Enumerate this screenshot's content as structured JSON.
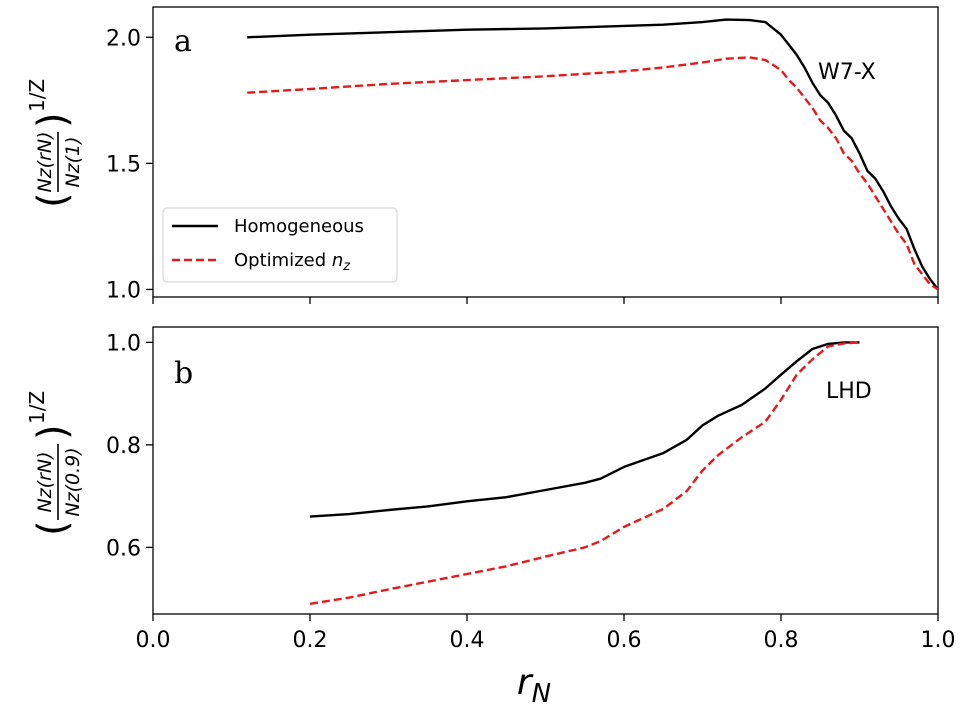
{
  "figure": {
    "xlabel": "r_N",
    "xlabel_main": "r",
    "xlabel_sub": "N"
  },
  "chart_data": [
    {
      "type": "line",
      "panel_label": "a",
      "annotation": "W7-X",
      "ylabel": {
        "numerator": "N_z(r_N)",
        "denominator": "N_z(1)",
        "exponent": "1/Z"
      },
      "xlim": [
        0.0,
        1.0
      ],
      "ylim": [
        0.97,
        2.12
      ],
      "xticks": [
        0.0,
        0.2,
        0.4,
        0.6,
        0.8,
        1.0
      ],
      "yticks": [
        1.0,
        1.5,
        2.0
      ],
      "ytick_labels": [
        "1.0",
        "1.5",
        "2.0"
      ],
      "xtick_labels_shown": false,
      "grid": false,
      "legend_position": "lower-left",
      "series": [
        {
          "name": "Homogeneous",
          "color": "#000000",
          "dash": "solid",
          "x": [
            0.12,
            0.2,
            0.3,
            0.4,
            0.5,
            0.6,
            0.65,
            0.7,
            0.73,
            0.76,
            0.78,
            0.8,
            0.81,
            0.82,
            0.83,
            0.84,
            0.85,
            0.86,
            0.87,
            0.88,
            0.89,
            0.9,
            0.91,
            0.92,
            0.93,
            0.94,
            0.95,
            0.96,
            0.97,
            0.98,
            0.99,
            1.0
          ],
          "y": [
            2.0,
            2.01,
            2.02,
            2.03,
            2.035,
            2.045,
            2.05,
            2.06,
            2.07,
            2.068,
            2.06,
            2.01,
            1.97,
            1.93,
            1.88,
            1.82,
            1.77,
            1.74,
            1.69,
            1.63,
            1.6,
            1.54,
            1.47,
            1.44,
            1.39,
            1.33,
            1.28,
            1.24,
            1.16,
            1.09,
            1.04,
            1.0
          ]
        },
        {
          "name": "Optimized n_z",
          "color": "#e41a1c",
          "dash": "dashed",
          "x": [
            0.12,
            0.2,
            0.3,
            0.4,
            0.5,
            0.6,
            0.65,
            0.7,
            0.73,
            0.76,
            0.78,
            0.8,
            0.81,
            0.82,
            0.83,
            0.84,
            0.85,
            0.86,
            0.87,
            0.88,
            0.89,
            0.9,
            0.91,
            0.92,
            0.93,
            0.94,
            0.95,
            0.96,
            0.97,
            0.98,
            0.99,
            1.0
          ],
          "y": [
            1.78,
            1.795,
            1.815,
            1.83,
            1.845,
            1.865,
            1.88,
            1.9,
            1.915,
            1.92,
            1.91,
            1.87,
            1.83,
            1.8,
            1.76,
            1.72,
            1.67,
            1.64,
            1.6,
            1.54,
            1.51,
            1.46,
            1.42,
            1.37,
            1.32,
            1.27,
            1.22,
            1.18,
            1.1,
            1.06,
            1.02,
            1.0
          ]
        }
      ]
    },
    {
      "type": "line",
      "panel_label": "b",
      "annotation": "LHD",
      "ylabel": {
        "numerator": "N_z(r_N)",
        "denominator": "N_z(0.9)",
        "exponent": "1/Z"
      },
      "xlim": [
        0.0,
        1.0
      ],
      "ylim": [
        0.47,
        1.03
      ],
      "xticks": [
        0.0,
        0.2,
        0.4,
        0.6,
        0.8,
        1.0
      ],
      "xtick_labels": [
        "0.0",
        "0.2",
        "0.4",
        "0.6",
        "0.8",
        "1.0"
      ],
      "yticks": [
        0.6,
        0.8,
        1.0
      ],
      "ytick_labels": [
        "0.6",
        "0.8",
        "1.0"
      ],
      "grid": false,
      "series": [
        {
          "name": "Homogeneous",
          "color": "#000000",
          "dash": "solid",
          "x": [
            0.2,
            0.25,
            0.3,
            0.35,
            0.4,
            0.45,
            0.5,
            0.55,
            0.57,
            0.6,
            0.65,
            0.68,
            0.7,
            0.72,
            0.75,
            0.78,
            0.8,
            0.82,
            0.84,
            0.86,
            0.88,
            0.9
          ],
          "y": [
            0.66,
            0.665,
            0.673,
            0.68,
            0.69,
            0.698,
            0.712,
            0.726,
            0.734,
            0.757,
            0.784,
            0.81,
            0.838,
            0.857,
            0.878,
            0.91,
            0.937,
            0.963,
            0.987,
            0.997,
            1.0,
            1.0
          ]
        },
        {
          "name": "Optimized n_z",
          "color": "#e41a1c",
          "dash": "dashed",
          "x": [
            0.2,
            0.25,
            0.3,
            0.35,
            0.4,
            0.45,
            0.5,
            0.55,
            0.57,
            0.6,
            0.65,
            0.68,
            0.7,
            0.72,
            0.75,
            0.78,
            0.8,
            0.82,
            0.84,
            0.86,
            0.88,
            0.9
          ],
          "y": [
            0.49,
            0.502,
            0.518,
            0.533,
            0.548,
            0.563,
            0.582,
            0.6,
            0.612,
            0.64,
            0.675,
            0.71,
            0.75,
            0.78,
            0.815,
            0.845,
            0.888,
            0.937,
            0.967,
            0.992,
            0.998,
            1.0
          ]
        }
      ]
    }
  ]
}
